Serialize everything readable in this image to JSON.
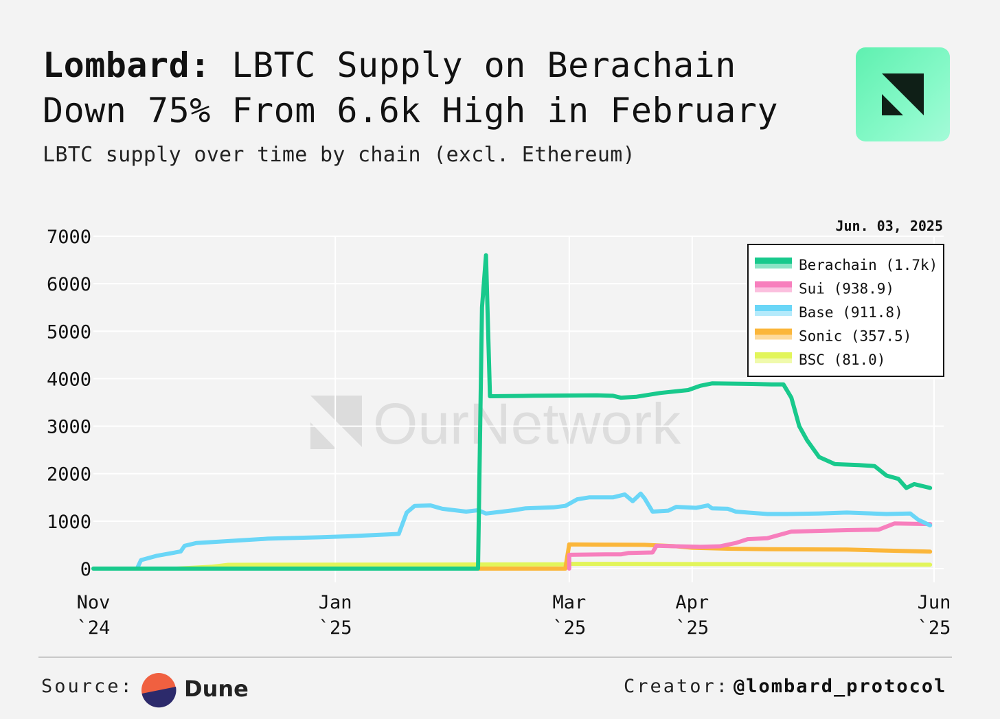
{
  "header": {
    "brand": "Lombard:",
    "title_rest_line1": " LBTC Supply on Berachain",
    "title_line2": "Down 75% From 6.6k High in February",
    "subtitle": "LBTC supply over time by chain (excl. Ethereum)",
    "logo_icon": "ournetwork-logo"
  },
  "watermark": {
    "text": "OurNetwork"
  },
  "chart_data": {
    "type": "line",
    "date_label": "Jun. 03, 2025",
    "ylim": [
      0,
      7000
    ],
    "y_ticks": [
      0,
      1000,
      2000,
      3000,
      4000,
      5000,
      6000,
      7000
    ],
    "xlim": [
      "2024-11-01",
      "2025-06-01"
    ],
    "x_ticks": [
      {
        "date": "2024-11-01",
        "line1": "Nov",
        "line2": "`24"
      },
      {
        "date": "2025-01-01",
        "line1": "Jan",
        "line2": "`25"
      },
      {
        "date": "2025-03-01",
        "line1": "Mar",
        "line2": "`25"
      },
      {
        "date": "2025-04-01",
        "line1": "Apr",
        "line2": "`25"
      },
      {
        "date": "2025-06-01",
        "line1": "Jun",
        "line2": "`25"
      }
    ],
    "grid": true,
    "legend_placement": "top-right",
    "series": [
      {
        "name": "BSC",
        "legend_label": "BSC (81.0)",
        "color": "#e2f55a",
        "points": [
          [
            "2024-11-01",
            0
          ],
          [
            "2024-11-22",
            0
          ],
          [
            "2024-12-01",
            40
          ],
          [
            "2024-12-05",
            80
          ],
          [
            "2025-02-28",
            90
          ],
          [
            "2025-03-01",
            100
          ],
          [
            "2025-04-15",
            95
          ],
          [
            "2025-05-31",
            81
          ]
        ]
      },
      {
        "name": "Sonic",
        "legend_label": "Sonic (357.5)",
        "color": "#fbb63a",
        "points": [
          [
            "2025-02-01",
            0
          ],
          [
            "2025-02-28",
            0
          ],
          [
            "2025-03-01",
            510
          ],
          [
            "2025-03-10",
            505
          ],
          [
            "2025-03-20",
            500
          ],
          [
            "2025-03-28",
            470
          ],
          [
            "2025-04-01",
            440
          ],
          [
            "2025-04-10",
            420
          ],
          [
            "2025-04-20",
            410
          ],
          [
            "2025-05-10",
            400
          ],
          [
            "2025-05-20",
            380
          ],
          [
            "2025-05-31",
            357.5
          ]
        ]
      },
      {
        "name": "Sui",
        "legend_label": "Sui (938.9)",
        "color": "#f77fbd",
        "points": [
          [
            "2025-03-01",
            0
          ],
          [
            "2025-03-01",
            290
          ],
          [
            "2025-03-10",
            300
          ],
          [
            "2025-03-14",
            300
          ],
          [
            "2025-03-16",
            330
          ],
          [
            "2025-03-22",
            340
          ],
          [
            "2025-03-23",
            480
          ],
          [
            "2025-03-28",
            470
          ],
          [
            "2025-04-03",
            460
          ],
          [
            "2025-04-08",
            470
          ],
          [
            "2025-04-12",
            540
          ],
          [
            "2025-04-15",
            620
          ],
          [
            "2025-04-20",
            640
          ],
          [
            "2025-04-26",
            780
          ],
          [
            "2025-05-01",
            790
          ],
          [
            "2025-05-05",
            800
          ],
          [
            "2025-05-10",
            810
          ],
          [
            "2025-05-18",
            820
          ],
          [
            "2025-05-22",
            950
          ],
          [
            "2025-05-31",
            938.9
          ]
        ]
      },
      {
        "name": "Base",
        "legend_label": "Base (911.8)",
        "color": "#6ad6f7",
        "points": [
          [
            "2024-11-01",
            0
          ],
          [
            "2024-11-12",
            0
          ],
          [
            "2024-11-13",
            180
          ],
          [
            "2024-11-17",
            270
          ],
          [
            "2024-11-23",
            360
          ],
          [
            "2024-11-24",
            480
          ],
          [
            "2024-11-27",
            540
          ],
          [
            "2024-12-15",
            630
          ],
          [
            "2024-12-28",
            660
          ],
          [
            "2025-01-04",
            680
          ],
          [
            "2025-01-09",
            700
          ],
          [
            "2025-01-17",
            730
          ],
          [
            "2025-01-19",
            1180
          ],
          [
            "2025-01-21",
            1320
          ],
          [
            "2025-01-25",
            1330
          ],
          [
            "2025-01-28",
            1260
          ],
          [
            "2025-02-03",
            1200
          ],
          [
            "2025-02-06",
            1230
          ],
          [
            "2025-02-08",
            1160
          ],
          [
            "2025-02-15",
            1230
          ],
          [
            "2025-02-18",
            1270
          ],
          [
            "2025-02-25",
            1290
          ],
          [
            "2025-02-28",
            1320
          ],
          [
            "2025-03-03",
            1460
          ],
          [
            "2025-03-06",
            1500
          ],
          [
            "2025-03-12",
            1500
          ],
          [
            "2025-03-15",
            1560
          ],
          [
            "2025-03-17",
            1420
          ],
          [
            "2025-03-19",
            1580
          ],
          [
            "2025-03-20",
            1480
          ],
          [
            "2025-03-22",
            1200
          ],
          [
            "2025-03-26",
            1220
          ],
          [
            "2025-03-28",
            1300
          ],
          [
            "2025-04-02",
            1280
          ],
          [
            "2025-04-05",
            1330
          ],
          [
            "2025-04-06",
            1270
          ],
          [
            "2025-04-10",
            1260
          ],
          [
            "2025-04-12",
            1200
          ],
          [
            "2025-04-15",
            1180
          ],
          [
            "2025-04-20",
            1150
          ],
          [
            "2025-04-25",
            1150
          ],
          [
            "2025-05-03",
            1160
          ],
          [
            "2025-05-10",
            1180
          ],
          [
            "2025-05-20",
            1150
          ],
          [
            "2025-05-26",
            1160
          ],
          [
            "2025-05-28",
            1030
          ],
          [
            "2025-05-31",
            911.8
          ]
        ]
      },
      {
        "name": "Berachain",
        "legend_label": "Berachain (1.7k)",
        "color": "#18c98c",
        "points": [
          [
            "2024-11-01",
            0
          ],
          [
            "2025-02-06",
            0
          ],
          [
            "2025-02-07",
            5500
          ],
          [
            "2025-02-08",
            6600
          ],
          [
            "2025-02-09",
            3630
          ],
          [
            "2025-02-20",
            3640
          ],
          [
            "2025-03-08",
            3650
          ],
          [
            "2025-03-12",
            3640
          ],
          [
            "2025-03-14",
            3600
          ],
          [
            "2025-03-18",
            3620
          ],
          [
            "2025-03-24",
            3700
          ],
          [
            "2025-03-31",
            3760
          ],
          [
            "2025-04-03",
            3850
          ],
          [
            "2025-04-06",
            3900
          ],
          [
            "2025-04-16",
            3890
          ],
          [
            "2025-04-21",
            3880
          ],
          [
            "2025-04-24",
            3880
          ],
          [
            "2025-04-26",
            3600
          ],
          [
            "2025-04-28",
            3000
          ],
          [
            "2025-04-30",
            2700
          ],
          [
            "2025-05-03",
            2350
          ],
          [
            "2025-05-07",
            2200
          ],
          [
            "2025-05-13",
            2180
          ],
          [
            "2025-05-17",
            2160
          ],
          [
            "2025-05-20",
            1960
          ],
          [
            "2025-05-23",
            1890
          ],
          [
            "2025-05-25",
            1700
          ],
          [
            "2025-05-27",
            1780
          ],
          [
            "2025-05-31",
            1700
          ]
        ]
      }
    ],
    "legend_order": [
      "Berachain",
      "Sui",
      "Base",
      "Sonic",
      "BSC"
    ]
  },
  "footer": {
    "source_label": "Source:",
    "source_name": "Dune",
    "source_icon": "dune-logo",
    "creator_label": "Creator:",
    "creator_handle": "@lombard_protocol"
  }
}
